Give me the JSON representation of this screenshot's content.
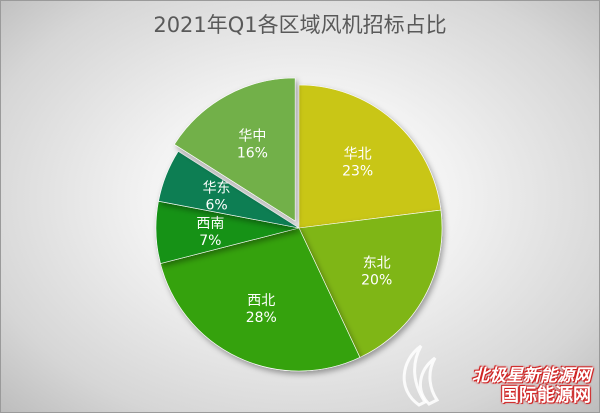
{
  "chart_data": {
    "type": "pie",
    "title": "2021年Q1各区域风机招标占比",
    "slices": [
      {
        "label": "华北",
        "value": 23,
        "value_label": "23%",
        "color": "#c9c617"
      },
      {
        "label": "东北",
        "value": 20,
        "value_label": "20%",
        "color": "#7fb612"
      },
      {
        "label": "西北",
        "value": 28,
        "value_label": "28%",
        "color": "#35a20f"
      },
      {
        "label": "西南",
        "value": 7,
        "value_label": "7%",
        "color": "#139217"
      },
      {
        "label": "华东",
        "value": 6,
        "value_label": "6%",
        "color": "#0b7e52"
      },
      {
        "label": "华中",
        "value": 16,
        "value_label": "16%",
        "color": "#72b04a",
        "exploded": true
      }
    ]
  },
  "watermark": {
    "line1": "北极星新能源网",
    "line2": "国际能源网"
  }
}
